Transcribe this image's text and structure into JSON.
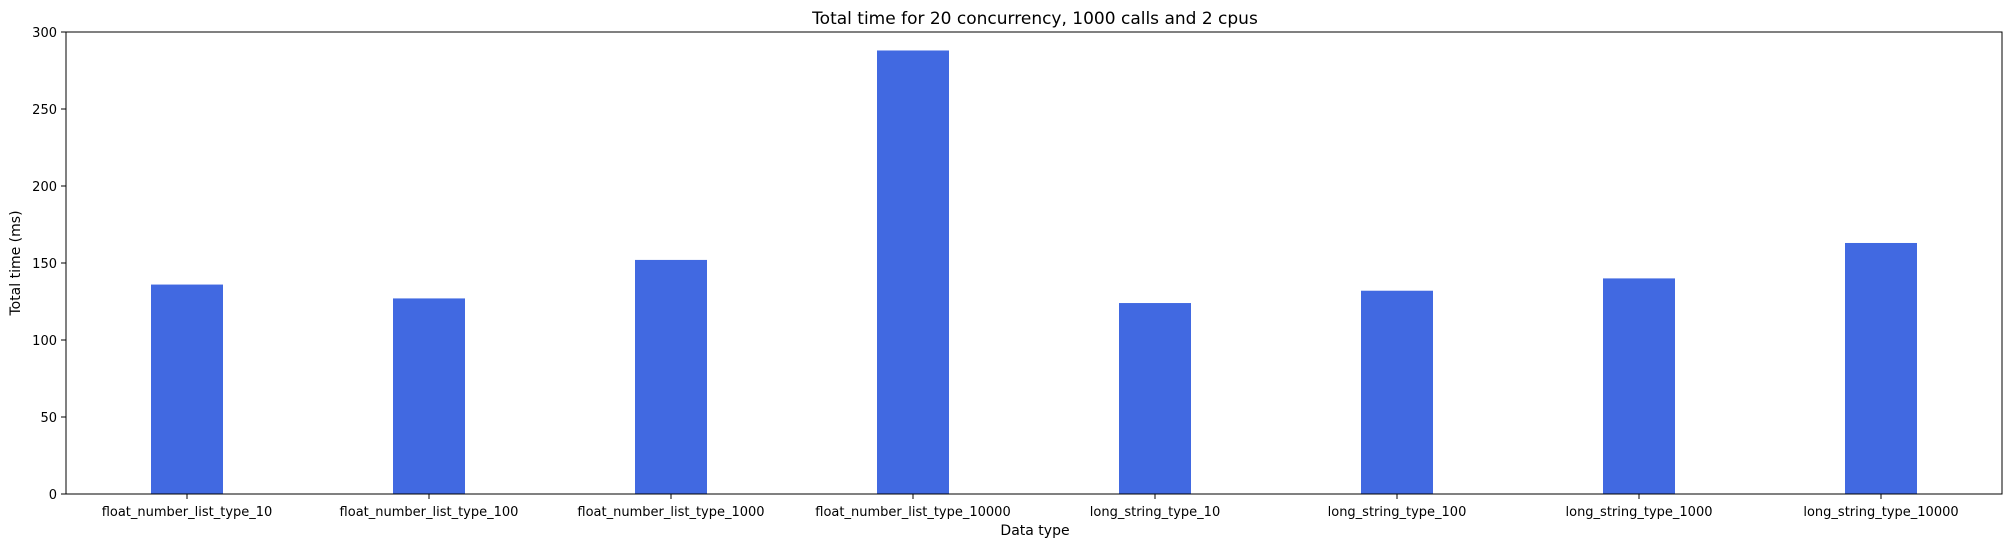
{
  "chart_data": {
    "type": "bar",
    "title": "Total time for 20 concurrency, 1000 calls and 2 cpus",
    "xlabel": "Data type",
    "ylabel": "Total time (ms)",
    "categories": [
      "float_number_list_type_10",
      "float_number_list_type_100",
      "float_number_list_type_1000",
      "float_number_list_type_10000",
      "long_string_type_10",
      "long_string_type_100",
      "long_string_type_1000",
      "long_string_type_10000"
    ],
    "values": [
      136,
      127,
      152,
      288,
      124,
      132,
      140,
      163
    ],
    "ylim": [
      0,
      300
    ],
    "yticks": [
      "0",
      "50",
      "100",
      "150",
      "200",
      "250",
      "300"
    ],
    "bar_color": "#4169E1",
    "grid": false,
    "legend": "none"
  }
}
